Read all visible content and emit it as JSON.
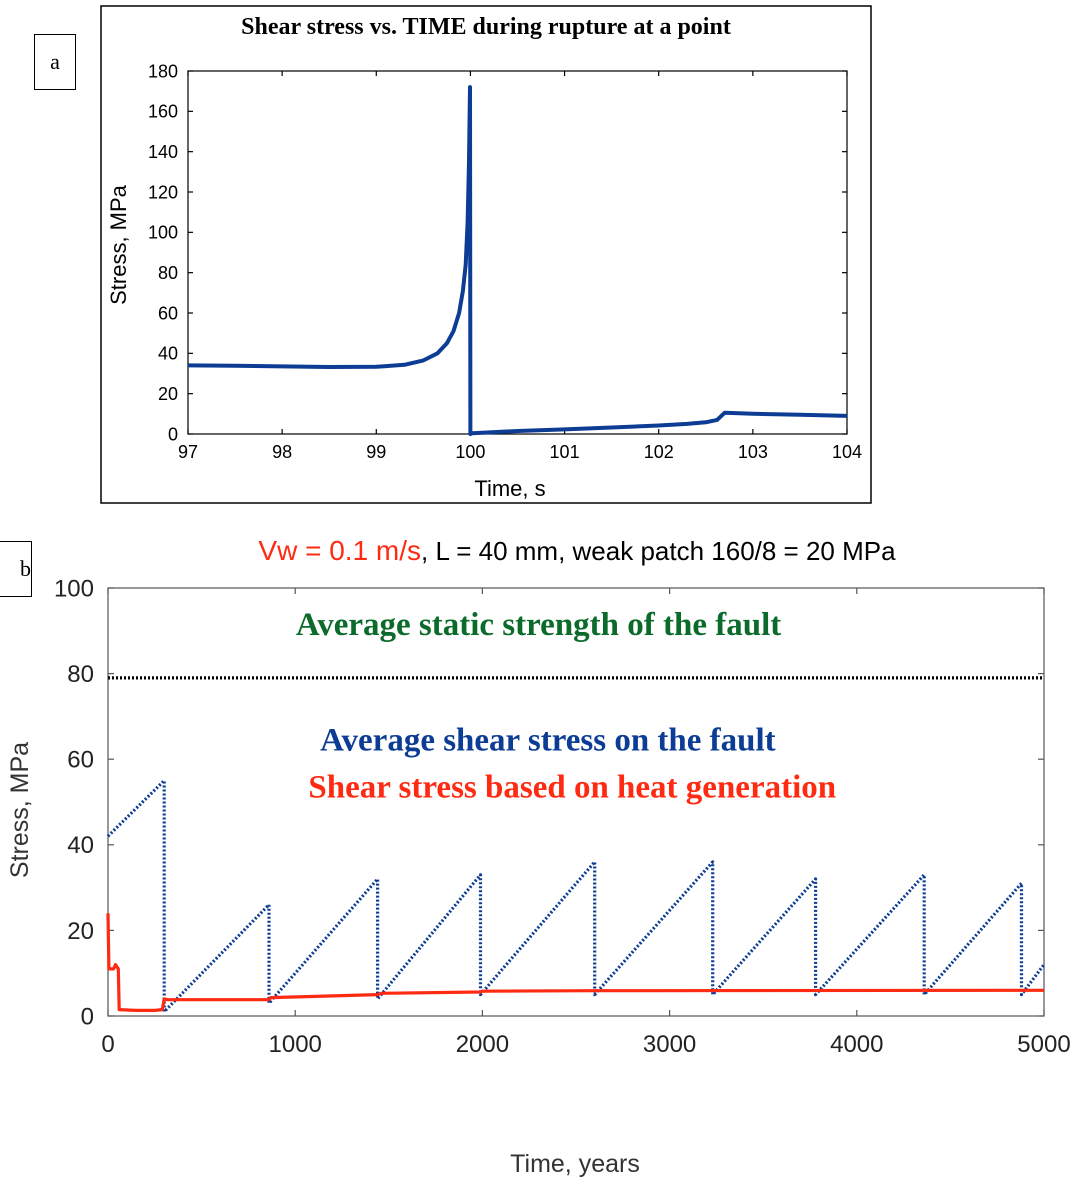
{
  "panel_labels": {
    "a": "a",
    "b": "b"
  },
  "colors": {
    "blue": "#0c3c94",
    "red": "#ff2a12",
    "green": "#0b6b2a",
    "black": "#000000"
  },
  "chart_data": [
    {
      "type": "line",
      "title": "Shear stress vs. TIME during rupture at a point",
      "xlabel": "Time, s",
      "ylabel": "Stress, MPa",
      "xlim": [
        97,
        104
      ],
      "ylim": [
        0,
        180
      ],
      "xticks": [
        "97",
        "98",
        "99",
        "100",
        "101",
        "102",
        "103",
        "104"
      ],
      "yticks": [
        "0",
        "20",
        "40",
        "60",
        "80",
        "100",
        "120",
        "140",
        "160",
        "180"
      ],
      "grid": false,
      "series": [
        {
          "color": "#0c3c94",
          "x": [
            97,
            97.5,
            98,
            98.5,
            99,
            99.3,
            99.5,
            99.65,
            99.75,
            99.82,
            99.88,
            99.92,
            99.95,
            99.97,
            99.985,
            99.995,
            100.0,
            100.02,
            100.5,
            101,
            101.5,
            102,
            102.3,
            102.5,
            102.62,
            102.7,
            103,
            103.5,
            104
          ],
          "y": [
            34,
            33.8,
            33.5,
            33.2,
            33.3,
            34.3,
            36.5,
            40,
            45,
            51,
            60,
            71,
            84,
            105,
            135,
            172,
            0,
            0.4,
            1.5,
            2.3,
            3.2,
            4.2,
            5.0,
            5.8,
            7,
            10.5,
            10,
            9.5,
            9
          ]
        }
      ]
    },
    {
      "type": "line",
      "title": "",
      "title_parts": [
        {
          "text": "Vw = 0.1 m/s",
          "color": "#ff2a12"
        },
        {
          "text": ", L = 40 mm, weak patch 160/8 = 20 MPa",
          "color": "#000000"
        }
      ],
      "xlabel": "Time, years",
      "ylabel": "Stress, MPa",
      "xlim": [
        0,
        5000
      ],
      "ylim": [
        0,
        100
      ],
      "xticks": [
        "0",
        "1000",
        "2000",
        "3000",
        "4000",
        "5000"
      ],
      "yticks": [
        "0",
        "20",
        "40",
        "60",
        "80",
        "100"
      ],
      "grid": false,
      "annotations": [
        {
          "text": "Average static strength of the fault",
          "color": "#0b6b2a",
          "x": 2300,
          "y": 89
        },
        {
          "text": "Average shear stress on the fault",
          "color": "#0c3c94",
          "x": 2350,
          "y": 62
        },
        {
          "text": "Shear stress based on heat generation",
          "color": "#ff2a12",
          "x": 2480,
          "y": 51
        }
      ],
      "series": [
        {
          "style": "dotted",
          "color": "#000000",
          "x": [
            0,
            5000
          ],
          "y": [
            79,
            79
          ]
        },
        {
          "style": "dotted",
          "color": "#0c3c94",
          "x": [
            0,
            300,
            300,
            860,
            860,
            1440,
            1440,
            1990,
            1990,
            2600,
            2600,
            3230,
            3230,
            3780,
            3780,
            4360,
            4360,
            4880,
            4880,
            5000
          ],
          "y": [
            42,
            55,
            1,
            26,
            3,
            32,
            4,
            33,
            5,
            36,
            5,
            36,
            5,
            32,
            5,
            33,
            5,
            31,
            5,
            12
          ]
        },
        {
          "style": "solid",
          "color": "#ff2a12",
          "x": [
            0,
            5,
            10,
            30,
            40,
            55,
            60,
            150,
            250,
            290,
            300,
            320,
            860,
            870,
            1440,
            1460,
            1990,
            2000,
            2600,
            5000
          ],
          "y": [
            24,
            11,
            11,
            11,
            12,
            11,
            1.5,
            1.3,
            1.3,
            1.5,
            4,
            3.8,
            3.8,
            4.3,
            5,
            5.3,
            5.6,
            5.8,
            5.9,
            6
          ]
        }
      ]
    }
  ]
}
